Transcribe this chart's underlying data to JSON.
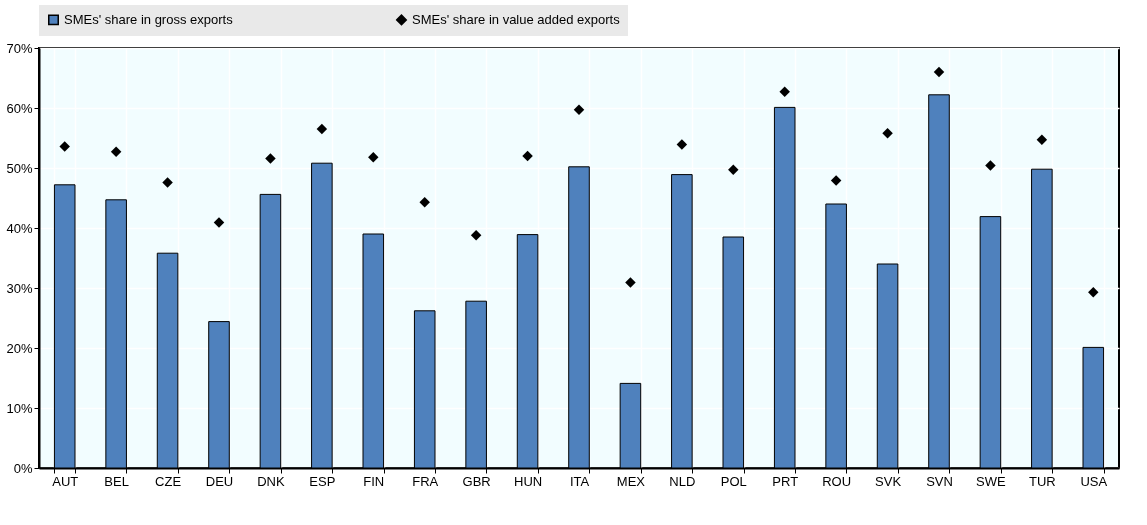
{
  "chart_data": {
    "type": "bar",
    "categories": [
      "AUT",
      "BEL",
      "CZE",
      "DEU",
      "DNK",
      "ESP",
      "FIN",
      "FRA",
      "GBR",
      "HUN",
      "ITA",
      "MEX",
      "NLD",
      "POL",
      "PRT",
      "ROU",
      "SVK",
      "SVN",
      "SWE",
      "TUR",
      "USA"
    ],
    "series": [
      {
        "name": "SMEs' share in gross exports",
        "color": "#4f81bd",
        "values": [
          47.2,
          44.7,
          35.8,
          24.4,
          45.6,
          50.8,
          39.0,
          26.2,
          27.8,
          38.9,
          50.2,
          14.1,
          48.9,
          38.5,
          60.1,
          44.0,
          34.0,
          62.2,
          41.9,
          49.8,
          20.1
        ]
      },
      {
        "name": "SMEs' share in value added exports",
        "type": "scatter",
        "color": "#000000",
        "values": [
          53.6,
          52.7,
          47.6,
          40.9,
          51.6,
          56.5,
          51.8,
          44.3,
          38.8,
          52.0,
          59.7,
          30.9,
          53.9,
          49.7,
          62.7,
          47.9,
          55.8,
          66.0,
          50.4,
          54.7,
          29.3
        ]
      }
    ],
    "marker": "diamond",
    "ylim": [
      0,
      70
    ],
    "yticks": [
      {
        "value": 0,
        "label": "0%"
      },
      {
        "value": 10,
        "label": "10%"
      },
      {
        "value": 20,
        "label": "20%"
      },
      {
        "value": 30,
        "label": "30%"
      },
      {
        "value": 40,
        "label": "40%"
      },
      {
        "value": 50,
        "label": "50%"
      },
      {
        "value": 60,
        "label": "60%"
      },
      {
        "value": 70,
        "label": "70%"
      }
    ],
    "grid": true,
    "legend": "top"
  }
}
